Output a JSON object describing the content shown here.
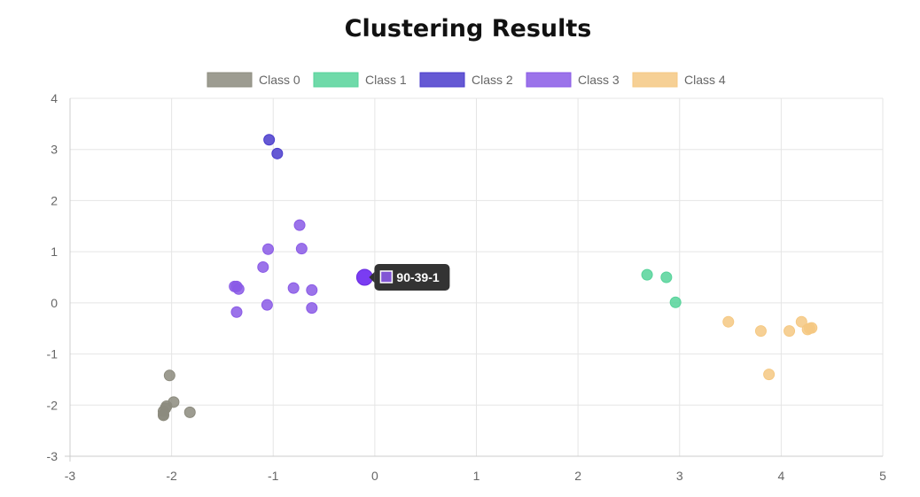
{
  "chart_data": {
    "type": "scatter",
    "title": "Clustering Results",
    "xlim": [
      -3,
      5
    ],
    "ylim": [
      -3,
      4
    ],
    "xticks": [
      "-3",
      "-2",
      "-1",
      "0",
      "1",
      "2",
      "3",
      "4",
      "5"
    ],
    "yticks": [
      "4",
      "3",
      "2",
      "1",
      "0",
      "-1",
      "-2",
      "-3"
    ],
    "grid": true,
    "legend_position": "top-center",
    "series": [
      {
        "name": "Class 0",
        "color": "#8c8b7e",
        "points": [
          [
            -2.02,
            -1.42
          ],
          [
            -1.98,
            -1.94
          ],
          [
            -2.05,
            -2.02
          ],
          [
            -2.06,
            -2.06
          ],
          [
            -2.08,
            -2.12
          ],
          [
            -2.08,
            -2.18
          ],
          [
            -2.08,
            -2.2
          ],
          [
            -1.82,
            -2.14
          ]
        ]
      },
      {
        "name": "Class 1",
        "color": "#56d39a",
        "points": [
          [
            2.68,
            0.55
          ],
          [
            2.87,
            0.5
          ],
          [
            2.96,
            0.01
          ]
        ]
      },
      {
        "name": "Class 2",
        "color": "#4a3ccc",
        "points": [
          [
            -1.04,
            3.19
          ],
          [
            -0.96,
            2.92
          ]
        ]
      },
      {
        "name": "Class 3",
        "color": "#8a5ae6",
        "points": [
          [
            -0.74,
            1.52
          ],
          [
            -1.05,
            1.05
          ],
          [
            -0.72,
            1.06
          ],
          [
            -1.1,
            0.7
          ],
          [
            -1.38,
            0.32
          ],
          [
            -1.36,
            0.32
          ],
          [
            -1.34,
            0.27
          ],
          [
            -0.8,
            0.29
          ],
          [
            -0.62,
            0.25
          ],
          [
            -1.06,
            -0.04
          ],
          [
            -0.62,
            -0.1
          ],
          [
            -1.36,
            -0.18
          ],
          [
            -0.1,
            0.5
          ]
        ]
      },
      {
        "name": "Class 4",
        "color": "#f5c882",
        "points": [
          [
            3.48,
            -0.37
          ],
          [
            3.8,
            -0.55
          ],
          [
            4.08,
            -0.55
          ],
          [
            4.2,
            -0.37
          ],
          [
            4.26,
            -0.52
          ],
          [
            4.28,
            -0.5
          ],
          [
            4.3,
            -0.49
          ],
          [
            3.88,
            -1.4
          ]
        ]
      }
    ],
    "tooltip": {
      "label": "90-39-1",
      "x": -0.1,
      "y": 0.5,
      "series_index": 3
    }
  }
}
